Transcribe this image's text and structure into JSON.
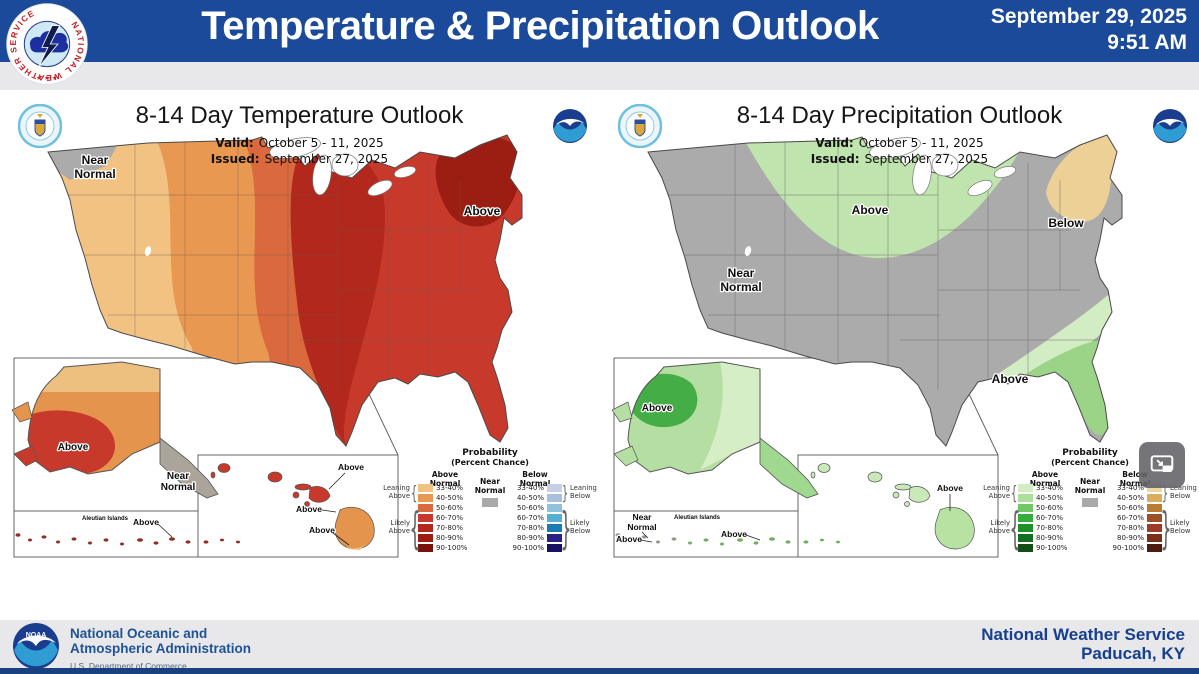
{
  "header": {
    "logo_ring": "NATIONAL WEATHER SERVICE",
    "logo_stars": "★ ★ ★",
    "title": "Temperature & Precipitation Outlook",
    "date": "September 29, 2025",
    "time": "9:51 AM"
  },
  "panels": {
    "temperature": {
      "title": "8-14 Day Temperature Outlook",
      "valid_label": "Valid:",
      "valid_value": "October 5 - 11, 2025",
      "issued_label": "Issued:",
      "issued_value": "September 27, 2025",
      "labels": {
        "near1": "Near",
        "near2": "Normal",
        "conus_above": "Above",
        "ak_above": "Above",
        "ak_near1": "Near",
        "ak_near2": "Normal",
        "aleutian": "Aleutian Islands",
        "aleutian_above": "Above",
        "hi_above1": "Above",
        "hi_above2": "Above",
        "hi_above3": "Above"
      }
    },
    "precipitation": {
      "title": "8-14 Day Precipitation Outlook",
      "valid_label": "Valid:",
      "valid_value": "October 5 - 11, 2025",
      "issued_label": "Issued:",
      "issued_value": "September 27, 2025",
      "labels": {
        "conus_above": "Above",
        "near1": "Near",
        "near2": "Normal",
        "below": "Below",
        "se_above": "Above",
        "ak_above": "Above",
        "ak_near1": "Near",
        "ak_near2": "Normal",
        "ak_west_above": "Above",
        "aleutian": "Aleutian Islands",
        "aleutian_above": "Above",
        "hi_above": "Above"
      }
    }
  },
  "legend": {
    "title": "Probability",
    "subtitle": "(Percent Chance)",
    "above_header": "Above Normal",
    "below_header": "Below Normal",
    "near1": "Near",
    "near2": "Normal",
    "rows": [
      "33-40%",
      "40-50%",
      "50-60%",
      "60-70%",
      "70-80%",
      "80-90%",
      "90-100%"
    ],
    "leaning": "Leaning",
    "likely": "Likely",
    "above_word": "Above",
    "below_word": "Below",
    "colors": {
      "near": "#a9a9a9",
      "temp_above": [
        "#f2c283",
        "#e99851",
        "#da6a3e",
        "#c7392b",
        "#b2281c",
        "#9c1d12",
        "#77130b"
      ],
      "temp_below": [
        "#c6cfe6",
        "#a8c0de",
        "#8ec3de",
        "#56aed3",
        "#1b7cb3",
        "#2b2185",
        "#181261"
      ],
      "precip_above": [
        "#d2ecc3",
        "#ace09a",
        "#70c765",
        "#35ad3c",
        "#1d9128",
        "#156f1e",
        "#114f16"
      ],
      "precip_below": [
        "#eed8a0",
        "#d9ae5c",
        "#b97c34",
        "#9a5126",
        "#9e3b26",
        "#7a3018",
        "#4e1d12"
      ]
    }
  },
  "overlay": {
    "pip_icon": "picture-in-picture-icon"
  },
  "footer": {
    "noaa_line1": "National Oceanic and",
    "noaa_line2": "Atmospheric Administration",
    "commerce": "U.S. Department of Commerce",
    "office_line1": "National Weather Service",
    "office_line2": "Paducah, KY"
  }
}
